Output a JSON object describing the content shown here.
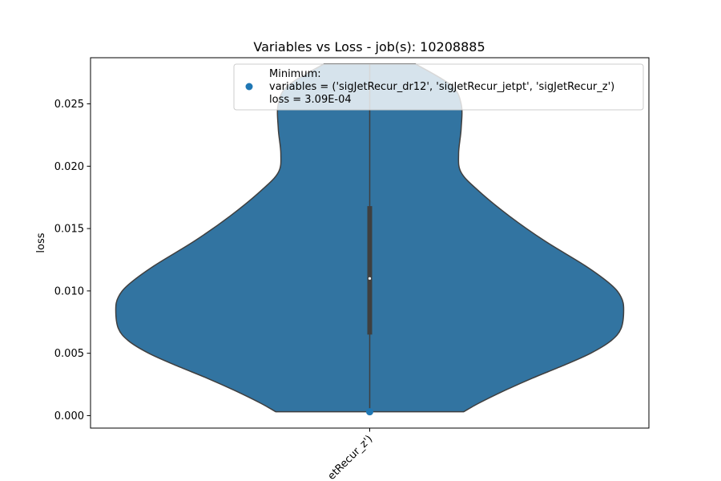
{
  "chart_data": {
    "type": "violin",
    "title": "Variables vs Loss - job(s): 10208885",
    "ylabel": "loss",
    "xlabel": "",
    "ylim": [
      -0.001,
      0.0287
    ],
    "yticks": [
      {
        "value": 0.0,
        "label": "0.000"
      },
      {
        "value": 0.005,
        "label": "0.005"
      },
      {
        "value": 0.01,
        "label": "0.010"
      },
      {
        "value": 0.015,
        "label": "0.015"
      },
      {
        "value": 0.02,
        "label": "0.020"
      },
      {
        "value": 0.025,
        "label": "0.025"
      }
    ],
    "categories": [
      "('sigJetRecur_dr12', 'sigJetRecur_jetpt', 'sigJetRecur_z')"
    ],
    "xtick_visible_label": "etRecur_z')",
    "violin": {
      "color": "#3274a1",
      "min": 0.00031,
      "max": 0.0282,
      "median": 0.011,
      "q1": 0.0065,
      "q3": 0.0168,
      "density_profile": [
        {
          "y": 0.00031,
          "half_width": 0.37
        },
        {
          "y": 0.001,
          "half_width": 0.43
        },
        {
          "y": 0.002,
          "half_width": 0.53
        },
        {
          "y": 0.003,
          "half_width": 0.64
        },
        {
          "y": 0.004,
          "half_width": 0.76
        },
        {
          "y": 0.005,
          "half_width": 0.87
        },
        {
          "y": 0.006,
          "half_width": 0.95
        },
        {
          "y": 0.007,
          "half_width": 0.99
        },
        {
          "y": 0.0085,
          "half_width": 1.0
        },
        {
          "y": 0.0095,
          "half_width": 0.99
        },
        {
          "y": 0.0105,
          "half_width": 0.95
        },
        {
          "y": 0.012,
          "half_width": 0.85
        },
        {
          "y": 0.014,
          "half_width": 0.69
        },
        {
          "y": 0.016,
          "half_width": 0.55
        },
        {
          "y": 0.018,
          "half_width": 0.43
        },
        {
          "y": 0.0195,
          "half_width": 0.36
        },
        {
          "y": 0.021,
          "half_width": 0.35
        },
        {
          "y": 0.023,
          "half_width": 0.36
        },
        {
          "y": 0.025,
          "half_width": 0.36
        },
        {
          "y": 0.0265,
          "half_width": 0.32
        },
        {
          "y": 0.0282,
          "half_width": 0.18
        }
      ]
    },
    "minimum_point": {
      "x_index": 0,
      "y": 0.000309,
      "color": "#1f77b4"
    },
    "legend": {
      "placement": "top-right",
      "lines": [
        "Minimum:",
        "variables = ('sigJetRecur_dr12', 'sigJetRecur_jetpt', 'sigJetRecur_z')",
        "loss = 3.09E-04"
      ]
    },
    "grid": false
  }
}
